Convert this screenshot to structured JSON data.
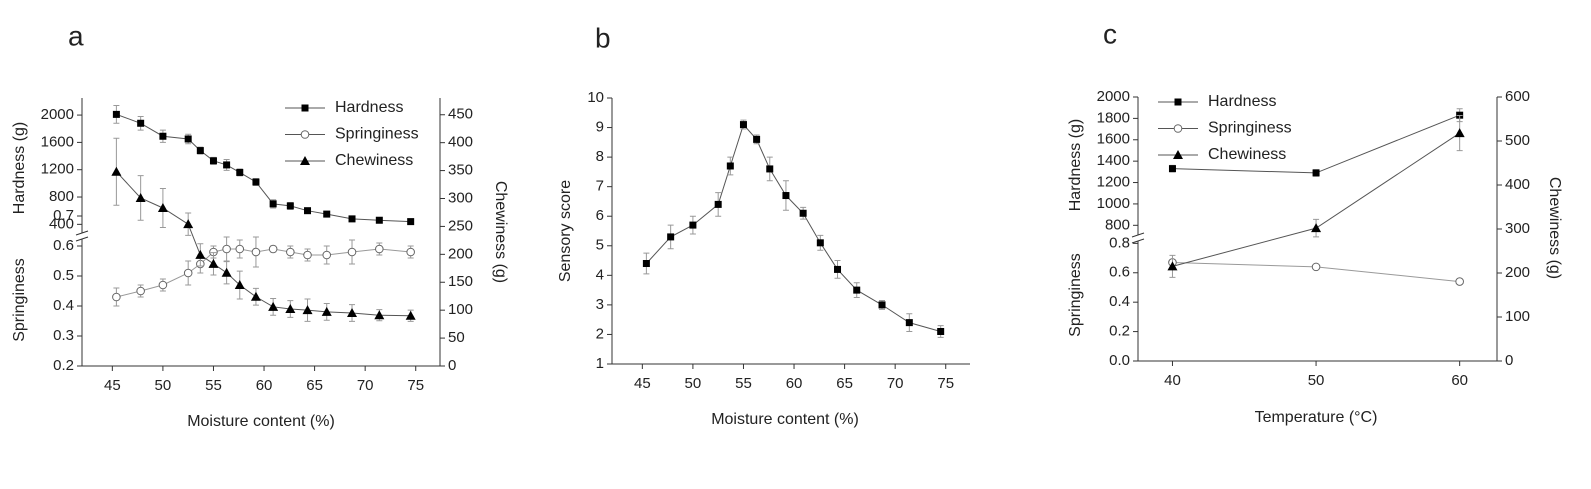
{
  "chart_data": [
    {
      "type": "line",
      "label": "a",
      "xlabel": "Moisture content (%)",
      "ylabel": "Hardness (g)",
      "y3label": "Springiness",
      "y2label": "Chewiness (g)",
      "x": [
        45.4,
        47.8,
        50,
        52.5,
        53.7,
        55,
        56.3,
        57.6,
        59.2,
        60.9,
        62.6,
        64.3,
        66.2,
        68.7,
        71.4,
        74.5
      ],
      "xlim": [
        42,
        77.4
      ],
      "xticks": [
        45,
        50,
        55,
        60,
        65,
        70,
        75
      ],
      "ylim": [
        200,
        2250
      ],
      "yticks": [
        400,
        800,
        1200,
        1600,
        2000
      ],
      "y3lim": [
        0.2,
        0.72
      ],
      "y3ticks": [
        0.2,
        0.3,
        0.4,
        0.5,
        0.6,
        0.7
      ],
      "y2lim": [
        0,
        480
      ],
      "y2ticks": [
        0,
        50,
        100,
        150,
        200,
        250,
        300,
        350,
        400,
        450
      ],
      "legend": "upper right",
      "series": [
        {
          "name": "Hardness",
          "axis": "y",
          "marker": "square",
          "color": "#000000",
          "values": [
            2010,
            1880,
            1690,
            1650,
            1480,
            1330,
            1270,
            1160,
            1020,
            700,
            670,
            600,
            550,
            480,
            460,
            440
          ],
          "errors": [
            130,
            100,
            90,
            70,
            50,
            50,
            80,
            50,
            50,
            60,
            50,
            30,
            20,
            20,
            20,
            20
          ]
        },
        {
          "name": "Springiness",
          "axis": "y3",
          "marker": "circle-open",
          "color": "#666666",
          "values": [
            0.43,
            0.45,
            0.47,
            0.51,
            0.54,
            0.58,
            0.59,
            0.59,
            0.58,
            0.59,
            0.58,
            0.57,
            0.57,
            0.58,
            0.59,
            0.58
          ],
          "errors": [
            0.03,
            0.02,
            0.02,
            0.04,
            0.03,
            0.02,
            0.04,
            0.03,
            0.05,
            0.01,
            0.02,
            0.02,
            0.03,
            0.04,
            0.02,
            0.02
          ]
        },
        {
          "name": "Chewiness",
          "axis": "y2",
          "marker": "triangle",
          "color": "#000000",
          "values": [
            348,
            301,
            283,
            254,
            199,
            183,
            167,
            145,
            124,
            106,
            102,
            100,
            97,
            95,
            91,
            90
          ],
          "errors": [
            60,
            40,
            35,
            20,
            20,
            20,
            20,
            25,
            15,
            15,
            15,
            20,
            15,
            15,
            10,
            10
          ]
        }
      ]
    },
    {
      "type": "line",
      "label": "b",
      "xlabel": "Moisture content (%)",
      "ylabel": "Sensory score",
      "x": [
        45.4,
        47.8,
        50,
        52.5,
        53.7,
        55,
        56.3,
        57.6,
        59.2,
        60.9,
        62.6,
        64.3,
        66.2,
        68.7,
        71.4,
        74.5
      ],
      "xlim": [
        42,
        77.4
      ],
      "xticks": [
        45,
        50,
        55,
        60,
        65,
        70,
        75
      ],
      "ylim": [
        1,
        10
      ],
      "yticks": [
        1,
        2,
        3,
        4,
        5,
        6,
        7,
        8,
        9,
        10
      ],
      "series": [
        {
          "axis": "y",
          "marker": "square",
          "color": "#000000",
          "values": [
            4.4,
            5.3,
            5.7,
            6.4,
            7.7,
            9.1,
            8.6,
            7.6,
            6.7,
            6.1,
            5.1,
            4.2,
            3.5,
            3.0,
            2.4,
            2.1
          ],
          "errors": [
            0.35,
            0.4,
            0.3,
            0.4,
            0.3,
            0.15,
            0.15,
            0.4,
            0.5,
            0.2,
            0.25,
            0.3,
            0.25,
            0.15,
            0.3,
            0.2
          ]
        }
      ]
    },
    {
      "type": "line",
      "label": "c",
      "xlabel": "Temperature (°C)",
      "ylabel": "Hardness (g)",
      "y3label": "Springiness",
      "y2label": "Chewiness (g)",
      "x": [
        40,
        50,
        60
      ],
      "xlim": [
        37.6,
        62.6
      ],
      "xticks": [
        40,
        50,
        60
      ],
      "ylim": [
        700,
        2000
      ],
      "yticks": [
        800,
        1000,
        1200,
        1400,
        1600,
        1800,
        2000
      ],
      "y3lim": [
        0,
        0.85
      ],
      "y3ticks": [
        {
          "value": 0,
          "label": "0.0"
        },
        0.2,
        0.4,
        0.6,
        0.8
      ],
      "y2lim": [
        0,
        600
      ],
      "y2ticks": [
        0,
        100,
        200,
        300,
        400,
        500,
        600
      ],
      "legend": "upper left",
      "series": [
        {
          "name": "Hardness",
          "axis": "y",
          "marker": "square",
          "color": "#000000",
          "values": [
            1330,
            1290,
            1830
          ],
          "errors": [
            30,
            30,
            60
          ]
        },
        {
          "name": "Springiness",
          "axis": "y3",
          "marker": "circle-open",
          "color": "#666666",
          "values": [
            0.67,
            0.64,
            0.54
          ],
          "errors": [
            0.01,
            0.01,
            0.01
          ]
        },
        {
          "name": "Chewiness",
          "axis": "y2",
          "marker": "triangle",
          "color": "#000000",
          "values": [
            215,
            302,
            518
          ],
          "errors": [
            25,
            20,
            40
          ]
        }
      ]
    }
  ]
}
